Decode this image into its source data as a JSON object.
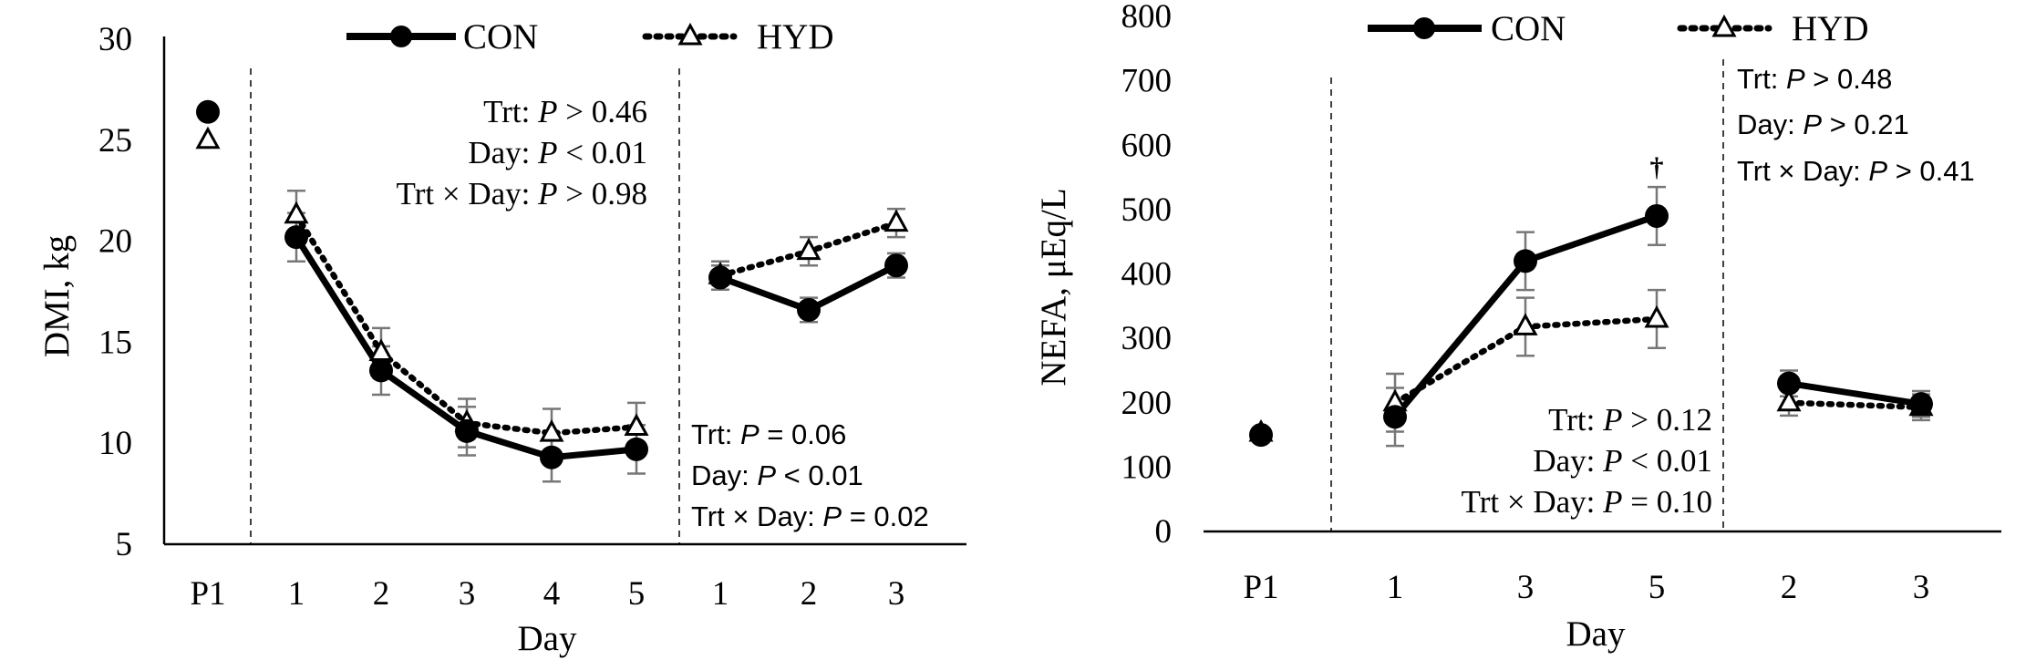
{
  "chart_data": [
    {
      "type": "line",
      "ylabel": "DMI, kg",
      "xlabel": "Day",
      "ylim": [
        5,
        30
      ],
      "yticks": [
        "5",
        "10",
        "15",
        "20",
        "25",
        "30"
      ],
      "categories": [
        "P1",
        "1",
        "2",
        "3",
        "4",
        "5",
        "1",
        "2",
        "3"
      ],
      "segments": [
        [
          0,
          0
        ],
        [
          1,
          5
        ],
        [
          6,
          8
        ]
      ],
      "series": [
        {
          "name": "CON",
          "style": "solid",
          "marker": "filled-circle",
          "color": "#000000",
          "values": [
            26.4,
            20.2,
            13.6,
            10.6,
            9.3,
            9.7,
            18.2,
            16.6,
            18.8
          ],
          "errors": [
            0,
            1.2,
            1.2,
            1.2,
            1.2,
            1.2,
            0.6,
            0.6,
            0.6
          ]
        },
        {
          "name": "HYD",
          "style": "dotted",
          "marker": "open-triangle",
          "color": "#000000",
          "values": [
            25.0,
            21.3,
            14.5,
            11.0,
            10.5,
            10.8,
            18.3,
            19.5,
            20.9
          ],
          "errors": [
            0,
            1.2,
            1.2,
            1.2,
            1.2,
            1.2,
            0.7,
            0.7,
            0.7
          ]
        }
      ],
      "annotations": [
        {
          "lines": [
            [
              "Trt: ",
              "P",
              " > 0.46"
            ],
            [
              "Day: ",
              "P",
              " < 0.01"
            ],
            [
              "Trt × Day: ",
              "P",
              " > 0.98"
            ]
          ],
          "font": "serif"
        },
        {
          "lines": [
            [
              "Trt: ",
              "P",
              " = 0.06"
            ],
            [
              "Day: ",
              "P",
              " < 0.01"
            ],
            [
              "Trt × Day: ",
              "P",
              " = 0.02"
            ]
          ],
          "font": "sans"
        }
      ]
    },
    {
      "type": "line",
      "ylabel": "NEFA, μEq/L",
      "xlabel": "Day",
      "ylim": [
        0,
        800
      ],
      "yticks": [
        "0",
        "100",
        "200",
        "300",
        "400",
        "500",
        "600",
        "700",
        "800"
      ],
      "categories": [
        "P1",
        "1",
        "3",
        "5",
        "2",
        "3"
      ],
      "segments": [
        [
          0,
          0
        ],
        [
          1,
          3
        ],
        [
          4,
          5
        ]
      ],
      "series": [
        {
          "name": "CON",
          "style": "solid",
          "marker": "filled-circle",
          "color": "#000000",
          "values": [
            150,
            178,
            420,
            490,
            230,
            198
          ],
          "errors": [
            0,
            45,
            45,
            45,
            20,
            20
          ]
        },
        {
          "name": "HYD",
          "style": "dotted",
          "marker": "open-triangle",
          "color": "#000000",
          "values": [
            153,
            200,
            318,
            330,
            200,
            193
          ],
          "errors": [
            0,
            45,
            45,
            45,
            20,
            20
          ]
        }
      ],
      "dagger": {
        "text": "†",
        "category_index": 3
      },
      "annotations": [
        {
          "lines": [
            [
              "Trt: ",
              "P",
              " > 0.48"
            ],
            [
              "Day: ",
              "P",
              " > 0.21"
            ],
            [
              "Trt × Day: ",
              "P",
              " > 0.41"
            ]
          ],
          "font": "sans"
        },
        {
          "lines": [
            [
              "Trt: ",
              "P",
              " > 0.12"
            ],
            [
              "Day: ",
              "P",
              " < 0.01"
            ],
            [
              "Trt × Day: ",
              "P",
              " = 0.10"
            ]
          ],
          "font": "serif"
        }
      ]
    }
  ],
  "legend": {
    "entries": [
      "CON",
      "HYD"
    ]
  }
}
